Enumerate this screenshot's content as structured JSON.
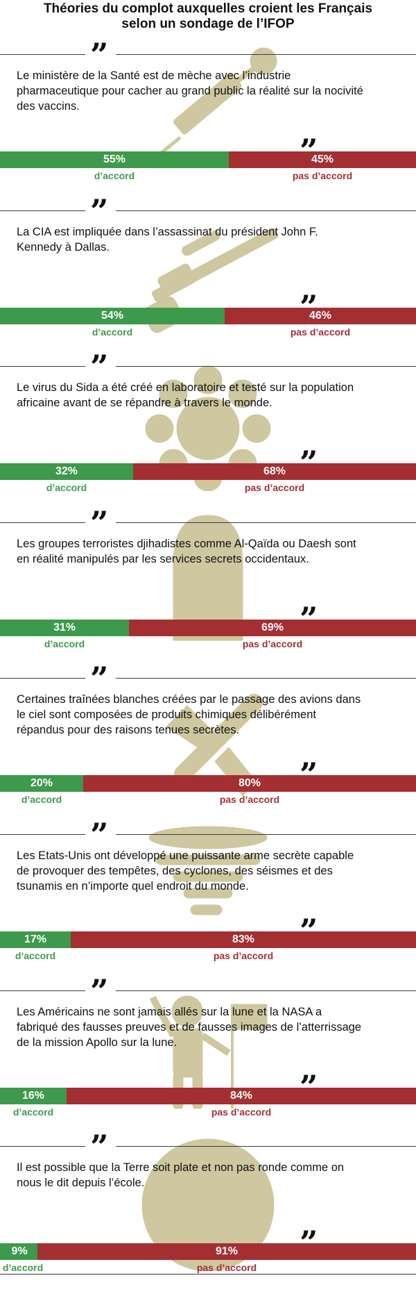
{
  "title": {
    "line1": "Théories du complot auxquelles croient les Français",
    "line2": "selon un sondage de l’IFOP"
  },
  "quote_open_glyph": "”",
  "quote_close_glyph": "”",
  "colors": {
    "agree": "#3d9a4c",
    "disagree": "#a32f33",
    "illustration": "#cfc79f"
  },
  "chart_data": {
    "type": "bar",
    "orientation": "horizontal-stacked",
    "series": [
      {
        "name": "d’accord",
        "values": [
          55,
          54,
          32,
          31,
          20,
          17,
          16,
          9
        ]
      },
      {
        "name": "pas d’accord",
        "values": [
          45,
          46,
          68,
          69,
          80,
          83,
          84,
          91
        ]
      }
    ],
    "items": [
      {
        "lines": [
          "Le ministère de la Santé est de mèche avec l’industrie",
          "pharmaceutique pour cacher au grand public la réalité sur la nocivité",
          "des vaccins."
        ],
        "agree": 55,
        "disagree": 45,
        "agree_text": "55%",
        "disagree_text": "45%",
        "agree_label": "d’accord",
        "disagree_label": "pas d’accord",
        "icon": "syringe-icon"
      },
      {
        "lines": [
          "La CIA est impliquée dans l’assassinat du président John F.",
          "Kennedy à Dallas."
        ],
        "agree": 54,
        "disagree": 46,
        "agree_text": "54%",
        "disagree_text": "46%",
        "agree_label": "d’accord",
        "disagree_label": "pas d’accord",
        "icon": "rifle-icon"
      },
      {
        "lines": [
          "Le virus du Sida a été créé en laboratoire et testé sur la population",
          "africaine avant de se répandre à travers le monde."
        ],
        "agree": 32,
        "disagree": 68,
        "agree_text": "32%",
        "disagree_text": "68%",
        "agree_label": "d’accord",
        "disagree_label": "pas d’accord",
        "icon": "virus-icon"
      },
      {
        "lines": [
          "Les groupes terroristes djihadistes comme Al-Qaïda ou Daesh sont",
          "en réalité manipulés par les services secrets occidentaux."
        ],
        "agree": 31,
        "disagree": 69,
        "agree_text": "31%",
        "disagree_text": "69%",
        "agree_label": "d’accord",
        "disagree_label": "pas d’accord",
        "icon": "balaclava-icon"
      },
      {
        "lines": [
          "Certaines traînées blanches créées par le passage des avions dans",
          "le ciel sont composées de produits chimiques délibérément",
          "répandus pour des raisons tenues secrètes."
        ],
        "agree": 20,
        "disagree": 80,
        "agree_text": "20%",
        "disagree_text": "80%",
        "agree_label": "d’accord",
        "disagree_label": "pas d’accord",
        "icon": "airplane-icon"
      },
      {
        "lines": [
          "Les Etats-Unis ont développé une puissante arme secrète capable",
          "de provoquer des tempêtes, des cyclones, des séismes et des",
          "tsunamis en n’importe quel endroit du monde."
        ],
        "agree": 17,
        "disagree": 83,
        "agree_text": "17%",
        "disagree_text": "83%",
        "agree_label": "d’accord",
        "disagree_label": "pas d’accord",
        "icon": "tornado-icon"
      },
      {
        "lines": [
          "Les Américains ne sont jamais allés sur la lune et la NASA a",
          "fabriqué des fausses preuves et de fausses images de l’atterrissage",
          "de la mission Apollo sur la lune."
        ],
        "agree": 16,
        "disagree": 84,
        "agree_text": "16%",
        "disagree_text": "84%",
        "agree_label": "d’accord",
        "disagree_label": "pas d’accord",
        "icon": "astronaut-icon"
      },
      {
        "lines": [
          "Il est possible que la Terre soit plate et non pas ronde comme on",
          "nous le dit depuis l’école."
        ],
        "agree": 9,
        "disagree": 91,
        "agree_text": "9%",
        "disagree_text": "91%",
        "agree_label": "d’accord",
        "disagree_label": "pas d’accord",
        "icon": "globe-icon"
      }
    ]
  }
}
